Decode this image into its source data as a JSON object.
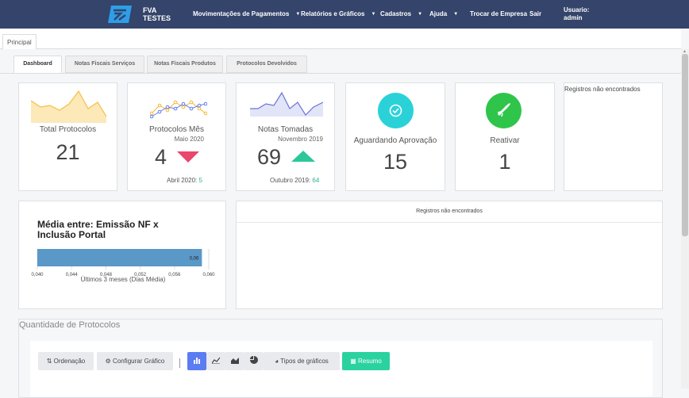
{
  "header": {
    "brand_line1": "FVA",
    "brand_line2": "TESTES",
    "menu": [
      {
        "label": "Movimentações de Pagamentos",
        "dropdown": true
      },
      {
        "label": "Relatórios e Gráficos",
        "dropdown": true
      },
      {
        "label": "Cadastros",
        "dropdown": true
      },
      {
        "label": "Ajuda",
        "dropdown": true
      },
      {
        "label": "Trocar de Empresa",
        "dropdown": false
      },
      {
        "label": "Sair",
        "dropdown": false
      }
    ],
    "user_label": "Usuario:",
    "user_name": "admin"
  },
  "main_tab": "Principal",
  "tabs": [
    "Dashboard",
    "Notas Fiscais Serviços",
    "Notas Fiscais Produtos",
    "Protocolos Devolvidos"
  ],
  "cards": {
    "total_protocolos": {
      "title": "Total Protocolos",
      "value": "21"
    },
    "protocolos_mes": {
      "title": "Protocolos Mês",
      "period": "Maio 2020",
      "value": "4",
      "prev_label": "Abril 2020:",
      "prev_value": "5"
    },
    "notas_tomadas": {
      "title": "Notas Tomadas",
      "period": "Novembro 2019",
      "value": "69",
      "prev_label": "Outubro 2019:",
      "prev_value": "64"
    },
    "aguardando": {
      "title": "Aguardando Aprovação",
      "value": "15"
    },
    "reativar": {
      "title": "Reativar",
      "value": "1"
    },
    "registros": {
      "title": "Registros não encontrados"
    }
  },
  "media_card": {
    "title": "Média entre: Emissão NF x Inclusão Portal",
    "bar_label": "0,06",
    "ticks": [
      "0,040",
      "0,044",
      "0,048",
      "0,052",
      "0,056",
      "0,060"
    ],
    "xlabel": "Últimos 3 meses (Dias Média)"
  },
  "empty_panel": "Registros não encontrados",
  "quantidade": {
    "title": "Quantidade de Protocolos"
  },
  "toolbar": {
    "ordenacao": "Ordenação",
    "configurar": "Configurar Gráfico",
    "tipos": "Tipos de gráficos",
    "resumo": "Resumo"
  },
  "colors": {
    "navbar": "#34446a",
    "teal": "#2ad2d8",
    "green": "#2fc54a",
    "down_arrow": "#e9476b",
    "up_arrow": "#2bc79a",
    "bar": "#5a98c8"
  },
  "chart_data": {
    "type": "bar",
    "orientation": "horizontal",
    "title": "Média entre: Emissão NF x Inclusão Portal",
    "xlabel": "Últimos 3 meses (Dias Média)",
    "categories": [
      ""
    ],
    "values": [
      0.0592
    ],
    "data_labels": [
      "0,06"
    ],
    "xlim": [
      0.04,
      0.06
    ],
    "xticks": [
      0.04,
      0.044,
      0.048,
      0.052,
      0.056,
      0.06
    ],
    "grid": true
  }
}
